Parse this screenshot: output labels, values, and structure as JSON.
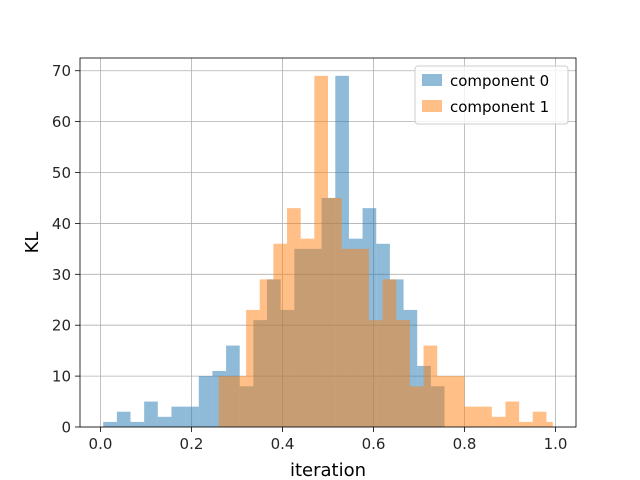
{
  "chart_data": {
    "type": "bar",
    "histogram": true,
    "xlabel": "iteration",
    "ylabel": "KL",
    "xlim": [
      -0.045,
      1.045
    ],
    "ylim": [
      0,
      72.5
    ],
    "xticks": [
      "0.0",
      "0.2",
      "0.4",
      "0.6",
      "0.8",
      "1.0"
    ],
    "yticks": [
      "0",
      "10",
      "20",
      "30",
      "40",
      "50",
      "60",
      "70"
    ],
    "grid": true,
    "legend_position": "top-right",
    "bins_edges_start": 0.0,
    "bin_width": 0.0333,
    "series": [
      {
        "name": "component 0",
        "color": "#1f77b4",
        "opacity": 0.5,
        "bins": [
          {
            "x0": 0.006,
            "x1": 0.036,
            "value": 1
          },
          {
            "x0": 0.036,
            "x1": 0.066,
            "value": 3
          },
          {
            "x0": 0.066,
            "x1": 0.096,
            "value": 1
          },
          {
            "x0": 0.096,
            "x1": 0.126,
            "value": 5
          },
          {
            "x0": 0.126,
            "x1": 0.156,
            "value": 2
          },
          {
            "x0": 0.156,
            "x1": 0.186,
            "value": 4
          },
          {
            "x0": 0.186,
            "x1": 0.216,
            "value": 4
          },
          {
            "x0": 0.216,
            "x1": 0.246,
            "value": 10
          },
          {
            "x0": 0.246,
            "x1": 0.276,
            "value": 11
          },
          {
            "x0": 0.276,
            "x1": 0.306,
            "value": 16
          },
          {
            "x0": 0.306,
            "x1": 0.336,
            "value": 8
          },
          {
            "x0": 0.336,
            "x1": 0.366,
            "value": 21
          },
          {
            "x0": 0.366,
            "x1": 0.396,
            "value": 29
          },
          {
            "x0": 0.396,
            "x1": 0.426,
            "value": 23
          },
          {
            "x0": 0.426,
            "x1": 0.456,
            "value": 35
          },
          {
            "x0": 0.456,
            "x1": 0.486,
            "value": 35
          },
          {
            "x0": 0.486,
            "x1": 0.516,
            "value": 45
          },
          {
            "x0": 0.516,
            "x1": 0.546,
            "value": 69
          },
          {
            "x0": 0.546,
            "x1": 0.576,
            "value": 37
          },
          {
            "x0": 0.576,
            "x1": 0.606,
            "value": 43
          },
          {
            "x0": 0.606,
            "x1": 0.636,
            "value": 36
          },
          {
            "x0": 0.636,
            "x1": 0.666,
            "value": 29
          },
          {
            "x0": 0.666,
            "x1": 0.696,
            "value": 23
          },
          {
            "x0": 0.696,
            "x1": 0.726,
            "value": 12
          },
          {
            "x0": 0.726,
            "x1": 0.756,
            "value": 8
          }
        ]
      },
      {
        "name": "component 1",
        "color": "#ff7f0e",
        "opacity": 0.5,
        "bins": [
          {
            "x0": 0.26,
            "x1": 0.29,
            "value": 10
          },
          {
            "x0": 0.29,
            "x1": 0.32,
            "value": 10
          },
          {
            "x0": 0.32,
            "x1": 0.35,
            "value": 23
          },
          {
            "x0": 0.35,
            "x1": 0.38,
            "value": 29
          },
          {
            "x0": 0.38,
            "x1": 0.41,
            "value": 36
          },
          {
            "x0": 0.41,
            "x1": 0.44,
            "value": 43
          },
          {
            "x0": 0.44,
            "x1": 0.47,
            "value": 37
          },
          {
            "x0": 0.47,
            "x1": 0.5,
            "value": 69
          },
          {
            "x0": 0.5,
            "x1": 0.53,
            "value": 45
          },
          {
            "x0": 0.53,
            "x1": 0.56,
            "value": 35
          },
          {
            "x0": 0.56,
            "x1": 0.59,
            "value": 35
          },
          {
            "x0": 0.59,
            "x1": 0.62,
            "value": 21
          },
          {
            "x0": 0.62,
            "x1": 0.65,
            "value": 29
          },
          {
            "x0": 0.65,
            "x1": 0.68,
            "value": 21
          },
          {
            "x0": 0.68,
            "x1": 0.71,
            "value": 8
          },
          {
            "x0": 0.71,
            "x1": 0.74,
            "value": 16
          },
          {
            "x0": 0.74,
            "x1": 0.77,
            "value": 10
          },
          {
            "x0": 0.77,
            "x1": 0.8,
            "value": 10
          },
          {
            "x0": 0.8,
            "x1": 0.83,
            "value": 4
          },
          {
            "x0": 0.83,
            "x1": 0.86,
            "value": 4
          },
          {
            "x0": 0.86,
            "x1": 0.89,
            "value": 2
          },
          {
            "x0": 0.89,
            "x1": 0.92,
            "value": 5
          },
          {
            "x0": 0.92,
            "x1": 0.95,
            "value": 1
          },
          {
            "x0": 0.95,
            "x1": 0.98,
            "value": 3
          },
          {
            "x0": 0.98,
            "x1": 0.994,
            "value": 1
          }
        ]
      }
    ]
  }
}
